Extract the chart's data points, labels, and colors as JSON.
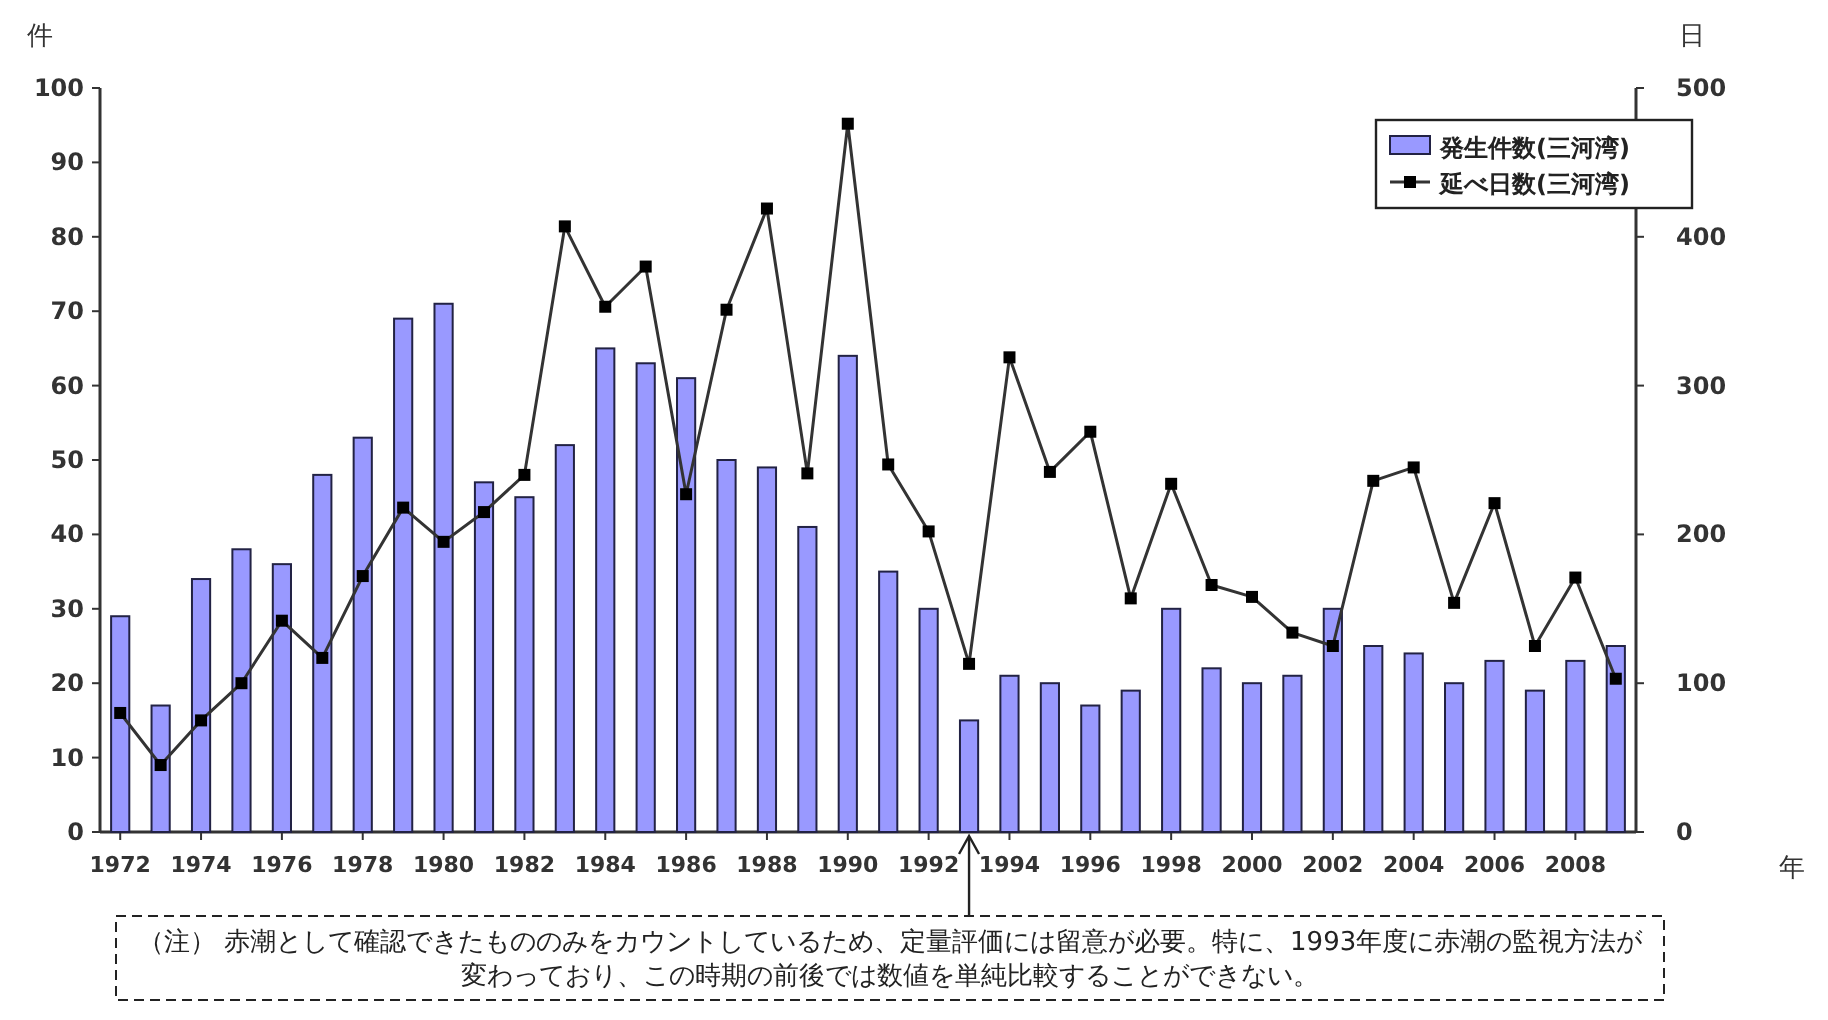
{
  "chart_data": {
    "type": "bar",
    "xlabel": "年",
    "ylabel": "件",
    "y2label": "日",
    "x": [
      1972,
      1973,
      1974,
      1975,
      1976,
      1977,
      1978,
      1979,
      1980,
      1981,
      1982,
      1983,
      1984,
      1985,
      1986,
      1987,
      1988,
      1989,
      1990,
      1991,
      1992,
      1993,
      1994,
      1995,
      1996,
      1997,
      1998,
      1999,
      2000,
      2001,
      2002,
      2003,
      2004,
      2005,
      2006,
      2007,
      2008,
      2009
    ],
    "xlim": [
      1971.5,
      2009.5
    ],
    "xticks": [
      1972,
      1974,
      1976,
      1978,
      1980,
      1982,
      1984,
      1986,
      1988,
      1990,
      1992,
      1994,
      1996,
      1998,
      2000,
      2002,
      2004,
      2006,
      2008
    ],
    "ylim": [
      0,
      100
    ],
    "yticks": [
      0,
      10,
      20,
      30,
      40,
      50,
      60,
      70,
      80,
      90,
      100
    ],
    "y2lim": [
      0,
      500
    ],
    "y2ticks": [
      0,
      100,
      200,
      300,
      400,
      500
    ],
    "series": [
      {
        "name": "発生件数(三河湾)",
        "color": "#9999ff",
        "values": [
          29,
          17,
          34,
          38,
          36,
          48,
          53,
          69,
          71,
          47,
          45,
          52,
          65,
          63,
          61,
          50,
          49,
          41,
          64,
          35,
          30,
          15,
          21,
          20,
          17,
          19,
          30,
          22,
          20,
          21,
          30,
          25,
          24,
          20,
          23,
          19,
          23,
          25
        ]
      },
      {
        "name": "延べ日数(三河湾)",
        "type": "line",
        "axis": "y2",
        "color": "#333333",
        "marker": "square",
        "values": [
          80,
          45,
          75,
          100,
          142,
          117,
          172,
          218,
          195,
          215,
          240,
          407,
          353,
          380,
          227,
          351,
          419,
          241,
          476,
          247,
          202,
          113,
          319,
          242,
          269,
          157,
          234,
          166,
          158,
          134,
          125,
          236,
          245,
          154,
          221,
          125,
          171,
          103
        ]
      }
    ],
    "legend": "top right",
    "grid": false,
    "annotations": [
      {
        "text": "（注） 赤潮として確認できたもののみをカウントしているため、定量評価には留意が必要。特に、1993年度に赤潮の監視方法が変わっており、この時期の前後では数値を単純比較することができない。",
        "x": 1993,
        "y": 0
      }
    ]
  }
}
